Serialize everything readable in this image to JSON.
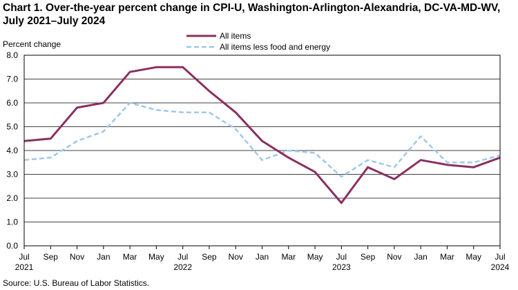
{
  "chart_data": {
    "type": "line",
    "title": "Chart 1. Over-the-year percent change in CPI-U, Washington-Arlington-Alexandria,  DC-VA-MD-WV, July 2021–July 2024",
    "ylabel": "Percent change",
    "xlabel": "",
    "ylim": [
      0,
      8
    ],
    "yticks": [
      "0.0",
      "1.0",
      "2.0",
      "3.0",
      "4.0",
      "5.0",
      "6.0",
      "7.0",
      "8.0"
    ],
    "x_ticks": [
      "Jul",
      "Sep",
      "Nov",
      "Jan",
      "Mar",
      "May",
      "Jul",
      "Sep",
      "Nov",
      "Jan",
      "Mar",
      "May",
      "Jul",
      "Sep",
      "Nov",
      "Jan",
      "Mar",
      "May",
      "Jul"
    ],
    "year_labels": [
      {
        "index": 0,
        "label": "2021"
      },
      {
        "index": 6,
        "label": "2022"
      },
      {
        "index": 12,
        "label": "2023"
      },
      {
        "index": 18,
        "label": "2024"
      }
    ],
    "legend_position": "top-center",
    "series": [
      {
        "name": "All items",
        "color": "#8B2F5E",
        "style": "solid",
        "values": [
          4.4,
          4.5,
          5.8,
          6.0,
          7.3,
          7.5,
          7.5,
          6.5,
          5.6,
          4.4,
          3.7,
          3.1,
          1.8,
          3.3,
          2.8,
          3.6,
          3.4,
          3.3,
          3.7
        ]
      },
      {
        "name": "All items less food and energy",
        "color": "#9DC8EC",
        "style": "dashed",
        "values": [
          3.6,
          3.7,
          4.4,
          4.8,
          6.0,
          5.7,
          5.6,
          5.6,
          4.9,
          3.6,
          4.0,
          3.9,
          2.9,
          3.6,
          3.3,
          4.6,
          3.5,
          3.5,
          3.8
        ]
      }
    ]
  },
  "source": "Source: U.S. Bureau  of Labor Statistics."
}
